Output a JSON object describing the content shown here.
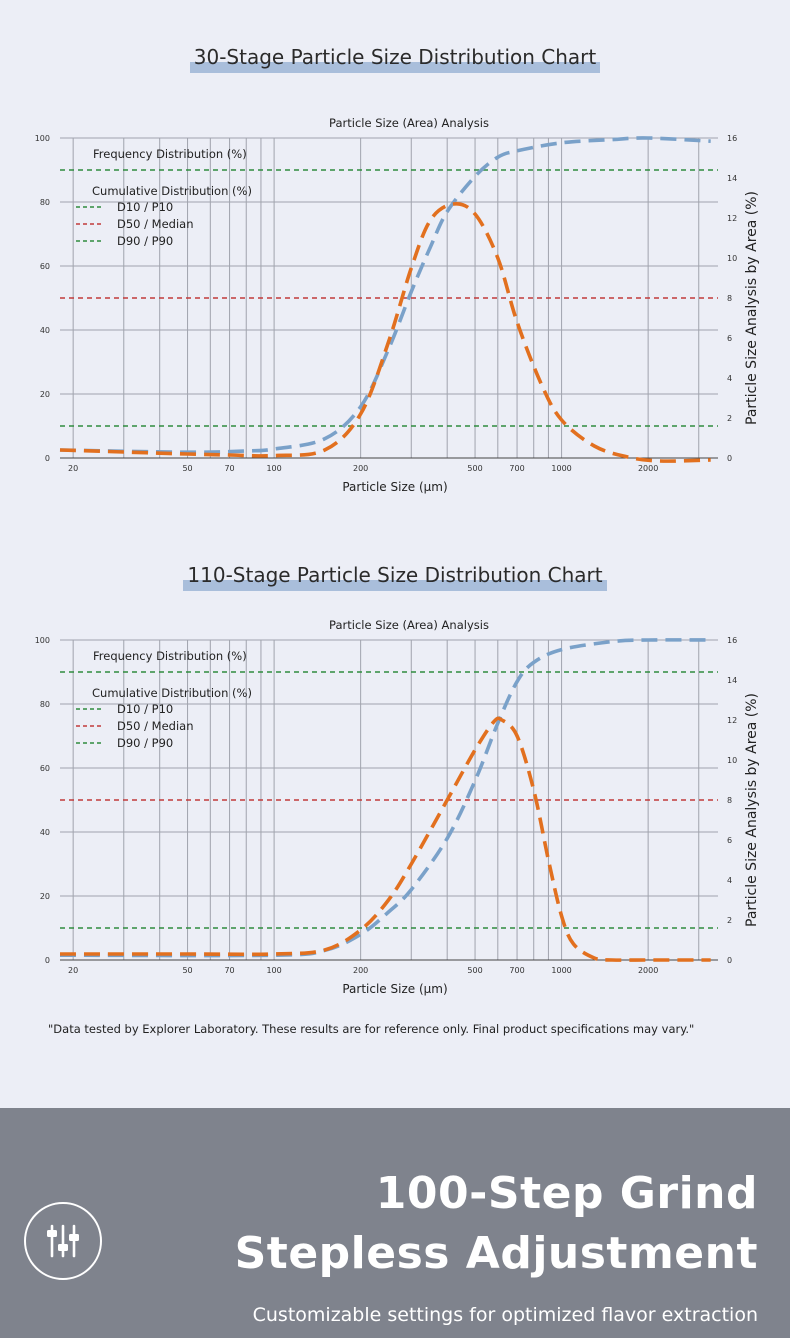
{
  "charts": [
    {
      "section_title": "30-Stage Particle Size Distribution Chart",
      "chart_data": {
        "type": "line",
        "title": "Particle Size (Area) Analysis",
        "xlabel": "Particle Size (μm)",
        "ylabel_right": "Particle Size Analysis by Area (%)",
        "x_scale": "log",
        "x_ticks": [
          20,
          50,
          70,
          100,
          200,
          500,
          700,
          1000,
          2000
        ],
        "xlim": [
          18,
          3500
        ],
        "y_left_ticks": [
          0,
          20,
          40,
          60,
          80,
          100
        ],
        "ylim_left": [
          0,
          100
        ],
        "y_right_ticks": [
          0,
          2,
          4,
          6,
          8,
          10,
          12,
          14,
          16
        ],
        "ylim_right": [
          0,
          16
        ],
        "legend": {
          "headers": [
            "Frequency Distribution (%)",
            "Cumulative Distribution (%)"
          ],
          "items": [
            {
              "label": "D10 / P10",
              "color": "#2e8b3e"
            },
            {
              "label": "D50 / Median",
              "color": "#c23a3a"
            },
            {
              "label": "D90 / P90",
              "color": "#2e8b3e"
            }
          ]
        },
        "reference_lines": [
          {
            "name": "D10 / P10",
            "y": 10,
            "color": "#2e8b3e"
          },
          {
            "name": "D50 / Median",
            "y": 50,
            "color": "#c23a3a"
          },
          {
            "name": "D90 / P90",
            "y": 90,
            "color": "#2e8b3e"
          }
        ],
        "series": [
          {
            "color": "#e2701f",
            "axis": "right",
            "x": [
              18,
              30,
              50,
              70,
              100,
              150,
              200,
              250,
              300,
              350,
              420,
              500,
              600,
              700,
              850,
              1000,
              1300,
              1700,
              2200,
              3300
            ],
            "y": [
              0.4,
              0.3,
              0.2,
              0.15,
              0.12,
              0.4,
              2.2,
              5.8,
              9.5,
              11.9,
              12.7,
              12.2,
              10.0,
              6.8,
              3.7,
              1.9,
              0.6,
              0.05,
              -0.15,
              -0.1
            ]
          },
          {
            "color": "#7aa1c9",
            "axis": "left",
            "x": [
              18,
              50,
              80,
              100,
              150,
              200,
              250,
              300,
              350,
              400,
              500,
              600,
              700,
              1000,
              1500,
              2000,
              3300
            ],
            "y": [
              2.5,
              1.8,
              2.2,
              2.8,
              6,
              16,
              34,
              52,
              66,
              77,
              88,
              94,
              96,
              98.5,
              99.5,
              100,
              99
            ]
          }
        ]
      }
    },
    {
      "section_title": "110-Stage Particle Size Distribution Chart",
      "chart_data": {
        "type": "line",
        "title": "Particle Size (Area) Analysis",
        "xlabel": "Particle Size (μm)",
        "ylabel_right": "Particle Size Analysis by Area (%)",
        "x_scale": "log",
        "x_ticks": [
          20,
          50,
          70,
          100,
          200,
          500,
          700,
          1000,
          2000
        ],
        "xlim": [
          18,
          3500
        ],
        "y_left_ticks": [
          0,
          20,
          40,
          60,
          80,
          100
        ],
        "ylim_left": [
          0,
          100
        ],
        "y_right_ticks": [
          0,
          2,
          4,
          6,
          8,
          10,
          12,
          14,
          16
        ],
        "ylim_right": [
          0,
          16
        ],
        "legend": {
          "headers": [
            "Frequency Distribution (%)",
            "Cumulative Distribution (%)"
          ],
          "items": [
            {
              "label": "D10 / P10",
              "color": "#2e8b3e"
            },
            {
              "label": "D50 / Median",
              "color": "#c23a3a"
            },
            {
              "label": "D90 / P90",
              "color": "#2e8b3e"
            }
          ]
        },
        "reference_lines": [
          {
            "name": "D10 / P10",
            "y": 10,
            "color": "#2e8b3e"
          },
          {
            "name": "D50 / Median",
            "y": 50,
            "color": "#c23a3a"
          },
          {
            "name": "D90 / P90",
            "y": 90,
            "color": "#2e8b3e"
          }
        ],
        "series": [
          {
            "color": "#e2701f",
            "axis": "right",
            "x": [
              18,
              50,
              100,
              150,
              200,
              250,
              300,
              400,
              500,
              580,
              620,
              700,
              800,
              900,
              1000,
              1100,
              1300,
              1500,
              2000,
              3300
            ],
            "y": [
              0.3,
              0.3,
              0.3,
              0.5,
              1.5,
              3.0,
              4.8,
              8.0,
              10.5,
              11.9,
              12.0,
              11.2,
              8.5,
              5.0,
              2.2,
              0.8,
              0.1,
              0,
              0,
              0
            ]
          },
          {
            "color": "#7aa1c9",
            "axis": "left",
            "x": [
              18,
              100,
              150,
              200,
              250,
              300,
              400,
              500,
              600,
              700,
              800,
              1000,
              1500,
              2000,
              3300
            ],
            "y": [
              1.5,
              1.5,
              3,
              8,
              15,
              22,
              38,
              56,
              74,
              87,
              93,
              97,
              99.5,
              100,
              100
            ]
          }
        ]
      }
    }
  ],
  "note": "\"Data tested by Explorer Laboratory. These results are for reference only. Final product specifications may vary.\"",
  "footer": {
    "headline_1": "100-Step Grind",
    "headline_2": "Stepless Adjustment",
    "subtitle": "Customizable settings for optimized flavor extraction",
    "icon": "sliders-icon"
  }
}
